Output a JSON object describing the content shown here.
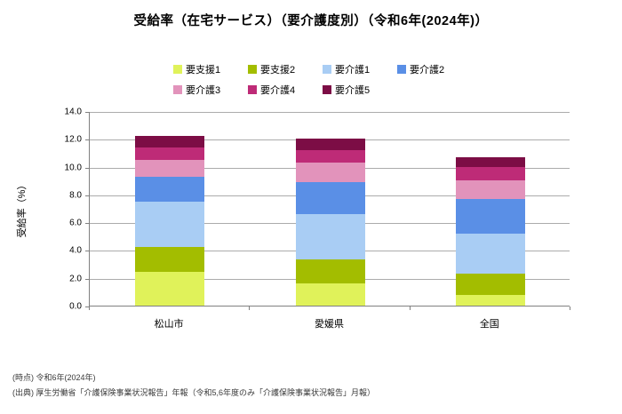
{
  "title": "受給率（在宅サービス）（要介護度別）（令和6年(2024年)）",
  "chart_data": {
    "type": "bar",
    "stacked": true,
    "categories": [
      "松山市",
      "愛媛県",
      "全国"
    ],
    "series": [
      {
        "name": "要支援1",
        "color": "#e0f25a",
        "values": [
          2.4,
          1.6,
          0.8
        ]
      },
      {
        "name": "要支援2",
        "color": "#a3bd00",
        "values": [
          1.8,
          1.7,
          1.5
        ]
      },
      {
        "name": "要介護1",
        "color": "#a9cdf4",
        "values": [
          3.3,
          3.3,
          2.9
        ]
      },
      {
        "name": "要介護2",
        "color": "#5a8fe6",
        "values": [
          1.8,
          2.3,
          2.5
        ]
      },
      {
        "name": "要介護3",
        "color": "#e293bb",
        "values": [
          1.2,
          1.4,
          1.3
        ]
      },
      {
        "name": "要介護4",
        "color": "#be2b77",
        "values": [
          0.9,
          0.9,
          1.0
        ]
      },
      {
        "name": "要介護5",
        "color": "#7c0d45",
        "values": [
          0.8,
          0.8,
          0.7
        ]
      }
    ],
    "ylabel": "受給率（%）",
    "ylim": [
      0,
      14
    ],
    "ytick_step": 2,
    "ytick_labels": [
      "0.0",
      "2.0",
      "4.0",
      "6.0",
      "8.0",
      "10.0",
      "12.0",
      "14.0"
    ],
    "grid": true,
    "legend_position": "top"
  },
  "colors": {
    "axis": "#808080",
    "gridline": "#ababab"
  },
  "footer": {
    "line1": "(時点) 令和6年(2024年)",
    "line2": "(出典) 厚生労働省「介護保険事業状況報告」年報（令和5,6年度のみ「介護保険事業状況報告」月報）"
  }
}
